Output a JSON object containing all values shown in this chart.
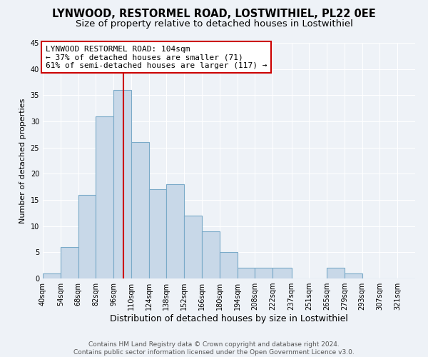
{
  "title": "LYNWOOD, RESTORMEL ROAD, LOSTWITHIEL, PL22 0EE",
  "subtitle": "Size of property relative to detached houses in Lostwithiel",
  "xlabel": "Distribution of detached houses by size in Lostwithiel",
  "ylabel": "Number of detached properties",
  "bin_labels": [
    "40sqm",
    "54sqm",
    "68sqm",
    "82sqm",
    "96sqm",
    "110sqm",
    "124sqm",
    "138sqm",
    "152sqm",
    "166sqm",
    "180sqm",
    "194sqm",
    "208sqm",
    "222sqm",
    "237sqm",
    "251sqm",
    "265sqm",
    "279sqm",
    "293sqm",
    "307sqm",
    "321sqm"
  ],
  "bin_edges": [
    40,
    54,
    68,
    82,
    96,
    110,
    124,
    138,
    152,
    166,
    180,
    194,
    208,
    222,
    237,
    251,
    265,
    279,
    293,
    307,
    321,
    335
  ],
  "counts": [
    1,
    6,
    16,
    31,
    36,
    26,
    17,
    18,
    12,
    9,
    5,
    2,
    2,
    2,
    0,
    0,
    2,
    1,
    0,
    0,
    0
  ],
  "bar_color": "#c8d8e8",
  "bar_edge_color": "#7aaac8",
  "marker_value": 104,
  "marker_color": "#cc0000",
  "annotation_title": "LYNWOOD RESTORMEL ROAD: 104sqm",
  "annotation_line1": "← 37% of detached houses are smaller (71)",
  "annotation_line2": "61% of semi-detached houses are larger (117) →",
  "annotation_box_color": "#ffffff",
  "annotation_box_edge": "#cc0000",
  "ylim": [
    0,
    45
  ],
  "yticks": [
    0,
    5,
    10,
    15,
    20,
    25,
    30,
    35,
    40,
    45
  ],
  "footer1": "Contains HM Land Registry data © Crown copyright and database right 2024.",
  "footer2": "Contains public sector information licensed under the Open Government Licence v3.0.",
  "background_color": "#eef2f7",
  "grid_color": "#ffffff",
  "title_fontsize": 10.5,
  "subtitle_fontsize": 9.5,
  "xlabel_fontsize": 9,
  "ylabel_fontsize": 8,
  "tick_fontsize": 7,
  "annotation_fontsize": 8,
  "footer_fontsize": 6.5
}
